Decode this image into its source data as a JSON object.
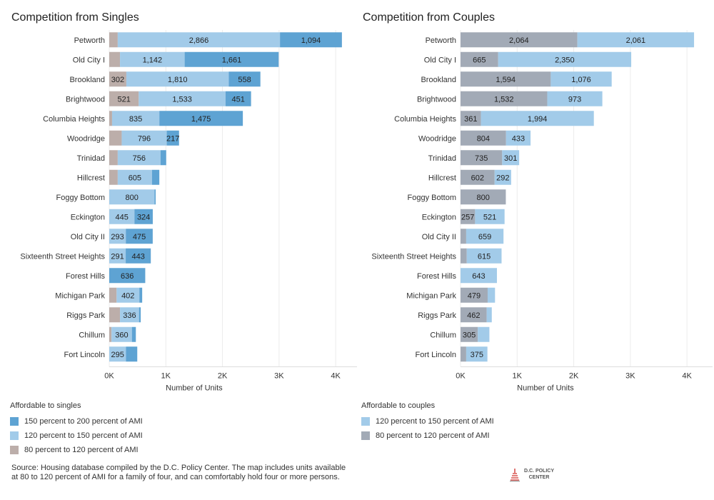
{
  "chart_data": [
    {
      "type": "bar",
      "orientation": "horizontal",
      "stacked": true,
      "title": "Competition from Singles",
      "xlabel": "Number of Units",
      "xlim": [
        0,
        4200
      ],
      "x_ticks": [
        0,
        1000,
        2000,
        3000,
        4000
      ],
      "x_tick_labels": [
        "0K",
        "1K",
        "2K",
        "3K",
        "4K"
      ],
      "grid": true,
      "categories": [
        "Petworth",
        "Old City I",
        "Brookland",
        "Brightwood",
        "Columbia Heights",
        "Woodridge",
        "Trinidad",
        "Hillcrest",
        "Foggy Bottom",
        "Eckington",
        "Old City II",
        "Sixteenth Street Heights",
        "Forest Hills",
        "Michigan Park",
        "Riggs Park",
        "Chillum",
        "Fort Lincoln"
      ],
      "series": [
        {
          "name": "80 percent to 120 percent of AMI",
          "color": "#bcaeaa",
          "values": [
            150,
            190,
            302,
            521,
            50,
            220,
            150,
            150,
            0,
            0,
            0,
            0,
            0,
            130,
            190,
            40,
            0
          ],
          "labels": [
            "",
            "",
            "302",
            "521",
            "",
            "",
            "",
            "",
            "",
            "",
            "",
            "",
            "",
            "",
            "",
            "",
            ""
          ]
        },
        {
          "name": "120 percent to 150 percent of AMI",
          "color": "#a2cbe9",
          "values": [
            2866,
            1142,
            1810,
            1533,
            835,
            796,
            756,
            605,
            800,
            445,
            293,
            291,
            0,
            402,
            336,
            360,
            295
          ],
          "labels": [
            "2,866",
            "1,142",
            "1,810",
            "1,533",
            "835",
            "796",
            "756",
            "605",
            "800",
            "445",
            "293",
            "291",
            "",
            "402",
            "336",
            "360",
            "295"
          ]
        },
        {
          "name": "150 percent to 200 percent of AMI",
          "color": "#5ea3d3",
          "values": [
            1094,
            1661,
            558,
            451,
            1475,
            217,
            100,
            130,
            20,
            324,
            475,
            443,
            636,
            50,
            30,
            70,
            200
          ],
          "labels": [
            "1,094",
            "1,661",
            "558",
            "451",
            "1,475",
            "217",
            "",
            "",
            "",
            "324",
            "475",
            "443",
            "636",
            "",
            "",
            "",
            ""
          ]
        }
      ],
      "legend_title": "Affordable to singles",
      "legend_order": [
        2,
        1,
        0
      ]
    },
    {
      "type": "bar",
      "orientation": "horizontal",
      "stacked": true,
      "title": "Competition from Couples",
      "xlabel": "Number of Units",
      "xlim": [
        0,
        4200
      ],
      "x_ticks": [
        0,
        1000,
        2000,
        3000,
        4000
      ],
      "x_tick_labels": [
        "0K",
        "1K",
        "2K",
        "3K",
        "4K"
      ],
      "grid": true,
      "categories": [
        "Petworth",
        "Old City I",
        "Brookland",
        "Brightwood",
        "Columbia Heights",
        "Woodridge",
        "Trinidad",
        "Hillcrest",
        "Foggy Bottom",
        "Eckington",
        "Old City II",
        "Sixteenth Street Heights",
        "Forest Hills",
        "Michigan Park",
        "Riggs Park",
        "Chillum",
        "Fort Lincoln"
      ],
      "series": [
        {
          "name": "80 percent to 120 percent of AMI",
          "color": "#a2aab6",
          "values": [
            2064,
            665,
            1594,
            1532,
            361,
            804,
            735,
            602,
            800,
            257,
            100,
            110,
            0,
            479,
            462,
            305,
            100
          ],
          "labels": [
            "2,064",
            "665",
            "1,594",
            "1,532",
            "361",
            "804",
            "735",
            "602",
            "800",
            "257",
            "",
            "",
            "",
            "479",
            "462",
            "305",
            ""
          ]
        },
        {
          "name": "120 percent to 150 percent of AMI",
          "color": "#a2cbe9",
          "values": [
            2061,
            2350,
            1076,
            973,
            1994,
            433,
            301,
            292,
            0,
            521,
            659,
            615,
            643,
            130,
            90,
            205,
            375
          ],
          "labels": [
            "2,061",
            "2,350",
            "1,076",
            "973",
            "1,994",
            "433",
            "301",
            "292",
            "",
            "521",
            "659",
            "615",
            "643",
            "",
            "",
            "",
            "375"
          ]
        }
      ],
      "legend_title": "Affordable to couples",
      "legend_order": [
        1,
        0
      ]
    }
  ],
  "footer": {
    "source": "Source: Housing database compiled by the D.C. Policy Center. The map includes units available at 80 to 120 percent of AMI for a family of four, and can comfortably hold four or more persons.",
    "logo_line1": "D.C. POLICY",
    "logo_line2": "CENTER"
  }
}
